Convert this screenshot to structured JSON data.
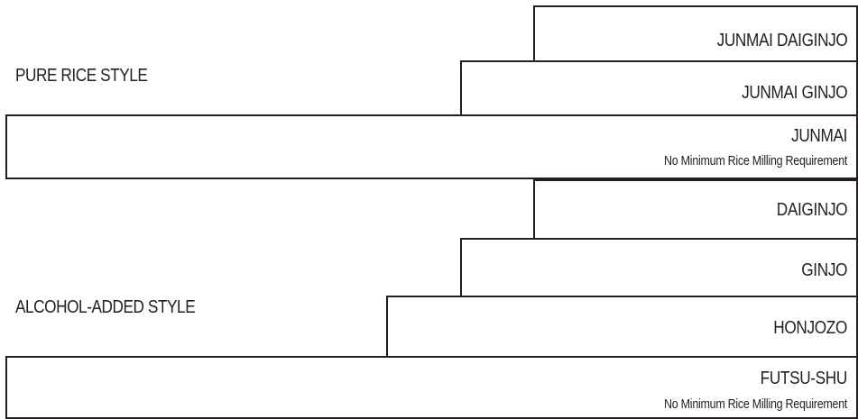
{
  "groups": {
    "pure_rice": {
      "label": "PURE RICE STYLE"
    },
    "alcohol_added": {
      "label": "ALCOHOL-ADDED STYLE"
    }
  },
  "grades": {
    "junmai_daiginjo": {
      "name": "JUNMAI DAIGINJO"
    },
    "junmai_ginjo": {
      "name": "JUNMAI GINJO"
    },
    "junmai": {
      "name": "JUNMAI",
      "note": "No Minimum Rice Milling Requirement"
    },
    "daiginjo": {
      "name": "DAIGINJO"
    },
    "ginjo": {
      "name": "GINJO"
    },
    "honjozo": {
      "name": "HONJOZO"
    },
    "futsu_shu": {
      "name": "FUTSU-SHU",
      "note": "No Minimum Rice Milling Requirement"
    }
  },
  "colors": {
    "line": "#231f20",
    "text": "#231f20",
    "background": "#ffffff"
  }
}
